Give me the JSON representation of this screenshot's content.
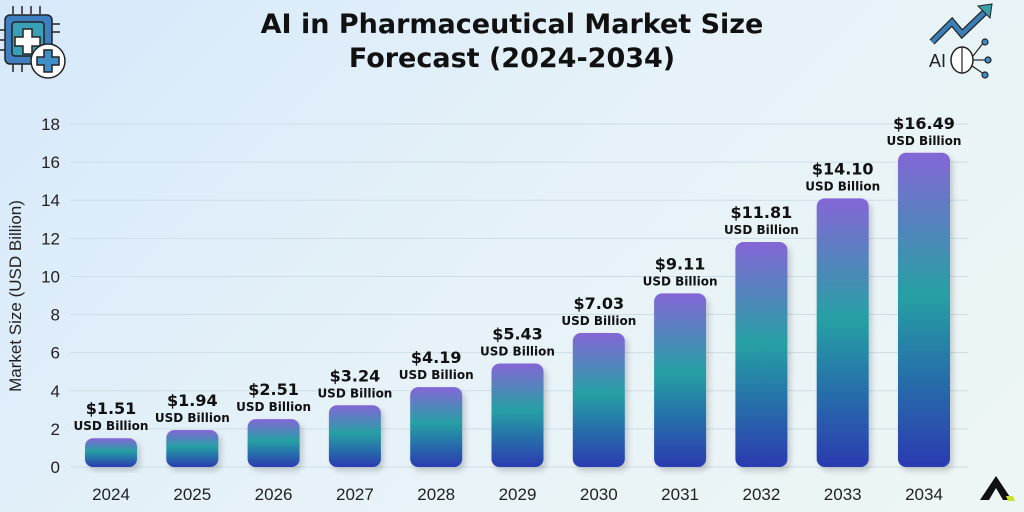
{
  "chart_data": {
    "type": "bar",
    "title": "AI in Pharmaceutical Market Size Forecast (2024-2034)",
    "title_lines": [
      "AI in Pharmaceutical Market Size",
      "Forecast (2024-2034)"
    ],
    "ylabel": "Market Size (USD Billion)",
    "xlabel": "",
    "categories": [
      "2024",
      "2025",
      "2026",
      "2027",
      "2028",
      "2029",
      "2030",
      "2031",
      "2032",
      "2033",
      "2034"
    ],
    "values": [
      1.51,
      1.94,
      2.51,
      3.24,
      4.19,
      5.43,
      7.03,
      9.11,
      11.81,
      14.1,
      16.49
    ],
    "data_labels": [
      "$1.51",
      "$1.94",
      "$2.51",
      "$3.24",
      "$4.19",
      "$5.43",
      "$7.03",
      "$9.11",
      "$11.81",
      "$14.10",
      "$16.49"
    ],
    "data_label_unit": "USD Billion",
    "ylim": [
      0,
      18
    ],
    "yticks": [
      0,
      2,
      4,
      6,
      8,
      10,
      12,
      14,
      16,
      18
    ],
    "grid": true,
    "legend": "none",
    "colors": {
      "bar_top": "#8466d6",
      "bar_mid": "#26a0a4",
      "bar_bottom": "#2a3bb0"
    }
  },
  "icons": [
    "medical-chip-icon",
    "ai-growth-brain-icon",
    "brand-logo-icon"
  ]
}
